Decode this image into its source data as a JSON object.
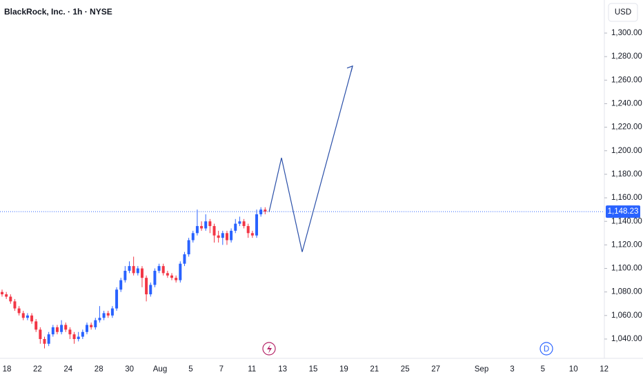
{
  "chart_data": {
    "type": "candlestick",
    "title": "BlackRock, Inc. · 1h · NYSE",
    "currency": "USD",
    "ylim": [
      1023.6,
      1328.1
    ],
    "yticks": [
      {
        "value": 1040,
        "label": "1,040.00"
      },
      {
        "value": 1060,
        "label": "1,060.00"
      },
      {
        "value": 1080,
        "label": "1,080.00"
      },
      {
        "value": 1100,
        "label": "1,100.00"
      },
      {
        "value": 1120,
        "label": "1,120.00"
      },
      {
        "value": 1140,
        "label": "1,140.00"
      },
      {
        "value": 1160,
        "label": "1,160.00"
      },
      {
        "value": 1180,
        "label": "1,180.00"
      },
      {
        "value": 1200,
        "label": "1,200.00"
      },
      {
        "value": 1220,
        "label": "1,220.00"
      },
      {
        "value": 1240,
        "label": "1,240.00"
      },
      {
        "value": 1260,
        "label": "1,260.00"
      },
      {
        "value": 1280,
        "label": "1,280.00"
      },
      {
        "value": 1300,
        "label": "1,300.00"
      }
    ],
    "categories": [
      "18",
      "22",
      "24",
      "28",
      "30",
      "Aug",
      "5",
      "7",
      "11",
      "13",
      "15",
      "19",
      "21",
      "25",
      "27",
      "Sep",
      "3",
      "5",
      "10",
      "12"
    ],
    "up_color": "#2962ff",
    "down_color": "#f23645",
    "open": [
      1080,
      1078,
      1076,
      1072,
      1066,
      1062,
      1058,
      1060,
      1055,
      1048,
      1040,
      1036,
      1044,
      1050,
      1046,
      1052,
      1048,
      1044,
      1040,
      1042,
      1046,
      1052,
      1050,
      1056,
      1058,
      1062,
      1060,
      1066,
      1082,
      1090,
      1098,
      1102,
      1096,
      1100,
      1092,
      1078,
      1086,
      1098,
      1102,
      1096,
      1094,
      1092,
      1090,
      1104,
      1112,
      1124,
      1130,
      1136,
      1134,
      1140,
      1136,
      1128,
      1126,
      1130,
      1124,
      1132,
      1138,
      1140,
      1136,
      1130,
      1128,
      1146,
      1150
    ],
    "high": [
      1082,
      1080,
      1078,
      1074,
      1068,
      1064,
      1062,
      1062,
      1057,
      1050,
      1042,
      1046,
      1052,
      1052,
      1056,
      1054,
      1050,
      1046,
      1046,
      1048,
      1054,
      1054,
      1058,
      1068,
      1064,
      1064,
      1068,
      1084,
      1092,
      1102,
      1106,
      1110,
      1102,
      1102,
      1094,
      1088,
      1100,
      1104,
      1104,
      1098,
      1096,
      1094,
      1106,
      1114,
      1126,
      1132,
      1150,
      1140,
      1146,
      1142,
      1138,
      1132,
      1132,
      1132,
      1134,
      1142,
      1144,
      1142,
      1138,
      1132,
      1150,
      1152,
      1152
    ],
    "low": [
      1076,
      1074,
      1070,
      1064,
      1060,
      1056,
      1056,
      1053,
      1046,
      1036,
      1032,
      1034,
      1042,
      1044,
      1044,
      1046,
      1040,
      1036,
      1038,
      1040,
      1044,
      1048,
      1048,
      1054,
      1056,
      1058,
      1058,
      1064,
      1080,
      1088,
      1096,
      1094,
      1094,
      1084,
      1072,
      1076,
      1084,
      1096,
      1094,
      1092,
      1090,
      1088,
      1088,
      1102,
      1110,
      1122,
      1128,
      1132,
      1132,
      1130,
      1122,
      1122,
      1120,
      1120,
      1122,
      1130,
      1136,
      1134,
      1126,
      1126,
      1126,
      1144,
      1146
    ],
    "close": [
      1078,
      1076,
      1072,
      1066,
      1062,
      1058,
      1060,
      1055,
      1048,
      1040,
      1036,
      1044,
      1050,
      1046,
      1052,
      1048,
      1044,
      1040,
      1042,
      1046,
      1052,
      1050,
      1056,
      1058,
      1062,
      1060,
      1066,
      1082,
      1090,
      1098,
      1102,
      1096,
      1100,
      1092,
      1078,
      1086,
      1098,
      1102,
      1096,
      1094,
      1092,
      1090,
      1104,
      1112,
      1124,
      1130,
      1136,
      1134,
      1140,
      1136,
      1128,
      1126,
      1130,
      1124,
      1132,
      1138,
      1140,
      1136,
      1130,
      1128,
      1146,
      1150,
      1148.23
    ],
    "last_price": {
      "value": 1148.23,
      "label": "1,148.23"
    },
    "projection": {
      "color": "#2a4fa8",
      "values": [
        1148,
        1194,
        1114,
        1272
      ]
    },
    "event_labels": [
      "D"
    ]
  }
}
